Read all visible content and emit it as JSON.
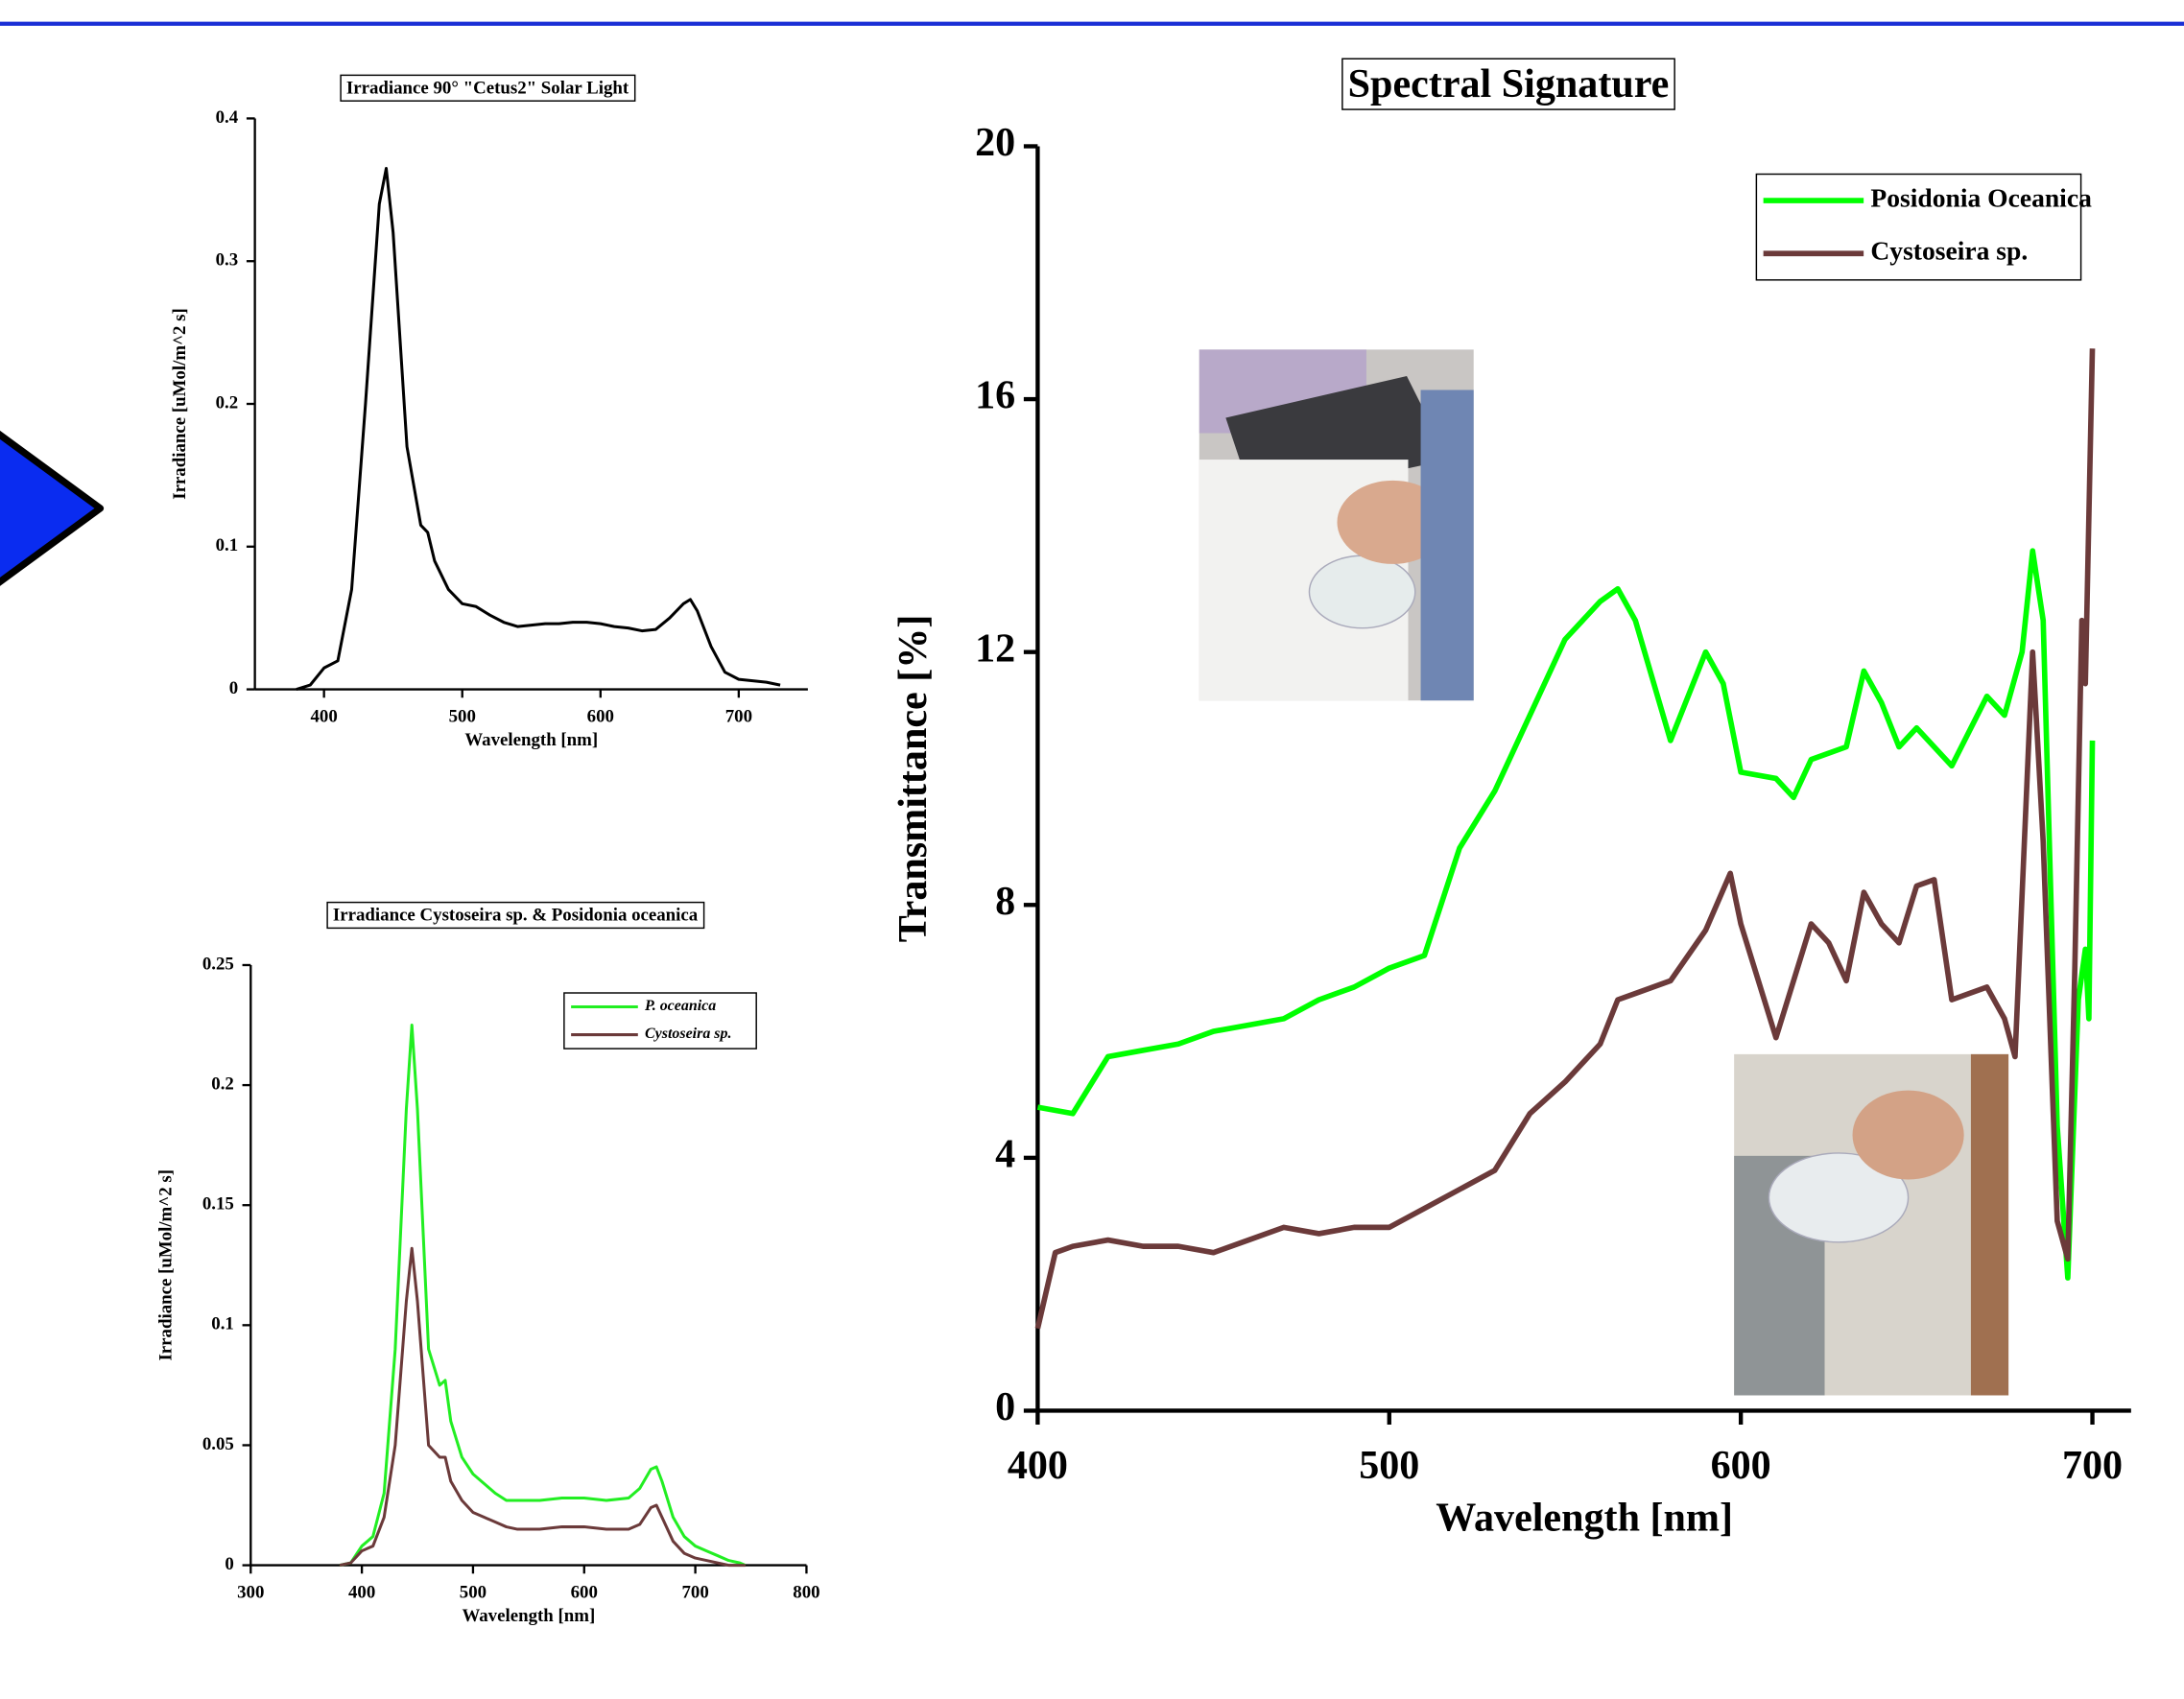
{
  "chart_data": [
    {
      "type": "line",
      "title": "Irradiance 90° \"Cetus2\" Solar Light",
      "x_label": "Wavelength [nm]",
      "y_label": "Irradiance [uMol/m^2 s]",
      "xlim": [
        350,
        750
      ],
      "xticks": [
        400,
        500,
        600,
        700
      ],
      "ylim": [
        0,
        0.4
      ],
      "yticks": [
        0,
        0.1,
        0.2,
        0.3,
        0.4
      ],
      "series": [
        {
          "color": "#000000",
          "x": [
            380,
            390,
            400,
            410,
            420,
            430,
            440,
            445,
            450,
            460,
            470,
            475,
            480,
            490,
            500,
            510,
            520,
            530,
            540,
            550,
            560,
            570,
            580,
            590,
            600,
            610,
            620,
            630,
            640,
            650,
            660,
            665,
            670,
            680,
            690,
            700,
            710,
            720,
            730
          ],
          "values": [
            0,
            0.003,
            0.015,
            0.02,
            0.07,
            0.2,
            0.34,
            0.365,
            0.32,
            0.17,
            0.115,
            0.11,
            0.09,
            0.07,
            0.06,
            0.058,
            0.052,
            0.047,
            0.044,
            0.045,
            0.046,
            0.046,
            0.047,
            0.047,
            0.046,
            0.044,
            0.043,
            0.041,
            0.042,
            0.05,
            0.06,
            0.063,
            0.055,
            0.03,
            0.012,
            0.007,
            0.006,
            0.005,
            0.003
          ]
        }
      ]
    },
    {
      "type": "line",
      "title": "Irradiance Cystoseira sp. & Posidonia oceanica",
      "x_label": "Wavelength [nm]",
      "y_label": "Irradiance [uMol/m^2 s]",
      "xlim": [
        300,
        800
      ],
      "xticks": [
        300,
        400,
        500,
        600,
        700,
        800
      ],
      "ylim": [
        0,
        0.25
      ],
      "yticks": [
        0,
        0.05,
        0.1,
        0.15,
        0.2,
        0.25
      ],
      "legend": "top-right",
      "series": [
        {
          "name": "P. oceanica",
          "color": "#22ee22",
          "x": [
            380,
            390,
            400,
            410,
            420,
            430,
            440,
            445,
            450,
            460,
            470,
            475,
            480,
            490,
            500,
            510,
            520,
            530,
            540,
            560,
            580,
            600,
            620,
            640,
            650,
            660,
            665,
            670,
            680,
            690,
            700,
            710,
            720,
            730,
            740,
            745
          ],
          "values": [
            0,
            0.001,
            0.008,
            0.012,
            0.03,
            0.09,
            0.19,
            0.225,
            0.19,
            0.09,
            0.075,
            0.077,
            0.06,
            0.045,
            0.038,
            0.034,
            0.03,
            0.027,
            0.027,
            0.027,
            0.028,
            0.028,
            0.027,
            0.028,
            0.032,
            0.04,
            0.041,
            0.035,
            0.02,
            0.012,
            0.008,
            0.006,
            0.004,
            0.002,
            0.001,
            0
          ]
        },
        {
          "name": "Cystoseira sp.",
          "color": "#6b3a3a",
          "x": [
            380,
            390,
            400,
            410,
            420,
            430,
            440,
            445,
            450,
            460,
            470,
            475,
            480,
            490,
            500,
            510,
            520,
            530,
            540,
            560,
            580,
            600,
            620,
            640,
            650,
            660,
            665,
            670,
            680,
            690,
            700,
            710,
            720,
            730,
            740,
            745
          ],
          "values": [
            0,
            0.001,
            0.006,
            0.008,
            0.02,
            0.05,
            0.11,
            0.132,
            0.11,
            0.05,
            0.045,
            0.045,
            0.035,
            0.027,
            0.022,
            0.02,
            0.018,
            0.016,
            0.015,
            0.015,
            0.016,
            0.016,
            0.015,
            0.015,
            0.017,
            0.024,
            0.025,
            0.02,
            0.01,
            0.005,
            0.003,
            0.002,
            0.001,
            0,
            0,
            0
          ]
        }
      ]
    },
    {
      "type": "line",
      "title": "Spectral Signature",
      "x_label": "Wavelength [nm]",
      "y_label": "Transmittance [%]",
      "xlim": [
        400,
        711
      ],
      "xticks": [
        400,
        500,
        600,
        700
      ],
      "ylim": [
        0,
        20
      ],
      "yticks": [
        0,
        4,
        8,
        12,
        16,
        20
      ],
      "legend": "top-right",
      "series": [
        {
          "name": "Posidonia Oceanica",
          "color": "#00ff00",
          "x": [
            400,
            410,
            420,
            430,
            440,
            450,
            460,
            470,
            480,
            490,
            500,
            510,
            520,
            530,
            540,
            550,
            560,
            565,
            570,
            580,
            590,
            595,
            600,
            610,
            615,
            620,
            630,
            635,
            640,
            645,
            650,
            660,
            670,
            675,
            680,
            683,
            686,
            690,
            693,
            696,
            698,
            699,
            700
          ],
          "values": [
            4.8,
            4.7,
            5.6,
            5.7,
            5.8,
            6.0,
            6.1,
            6.2,
            6.5,
            6.7,
            7.0,
            7.2,
            8.9,
            9.8,
            11.0,
            12.2,
            12.8,
            13.0,
            12.5,
            10.6,
            12.0,
            11.5,
            10.1,
            10.0,
            9.7,
            10.3,
            10.5,
            11.7,
            11.2,
            10.5,
            10.8,
            10.2,
            11.3,
            11.0,
            12.0,
            13.6,
            12.5,
            4.5,
            2.1,
            6.5,
            7.3,
            6.2,
            10.6
          ]
        },
        {
          "name": "Cystoseira sp.",
          "color": "#6b3a3a",
          "x": [
            400,
            405,
            410,
            420,
            430,
            440,
            450,
            460,
            470,
            480,
            490,
            500,
            510,
            520,
            530,
            540,
            550,
            560,
            565,
            570,
            580,
            590,
            597,
            600,
            610,
            620,
            625,
            630,
            635,
            640,
            645,
            650,
            655,
            660,
            670,
            675,
            678,
            683,
            686,
            690,
            693,
            695,
            697,
            698,
            700
          ],
          "values": [
            1.3,
            2.5,
            2.6,
            2.7,
            2.6,
            2.6,
            2.5,
            2.7,
            2.9,
            2.8,
            2.9,
            2.9,
            3.2,
            3.5,
            3.8,
            4.7,
            5.2,
            5.8,
            6.5,
            6.6,
            6.8,
            7.6,
            8.5,
            7.7,
            5.9,
            7.7,
            7.4,
            6.8,
            8.2,
            7.7,
            7.4,
            8.3,
            8.4,
            6.5,
            6.7,
            6.2,
            5.6,
            12.0,
            9.0,
            3.0,
            2.4,
            7.0,
            12.5,
            11.5,
            16.8
          ]
        }
      ]
    }
  ]
}
